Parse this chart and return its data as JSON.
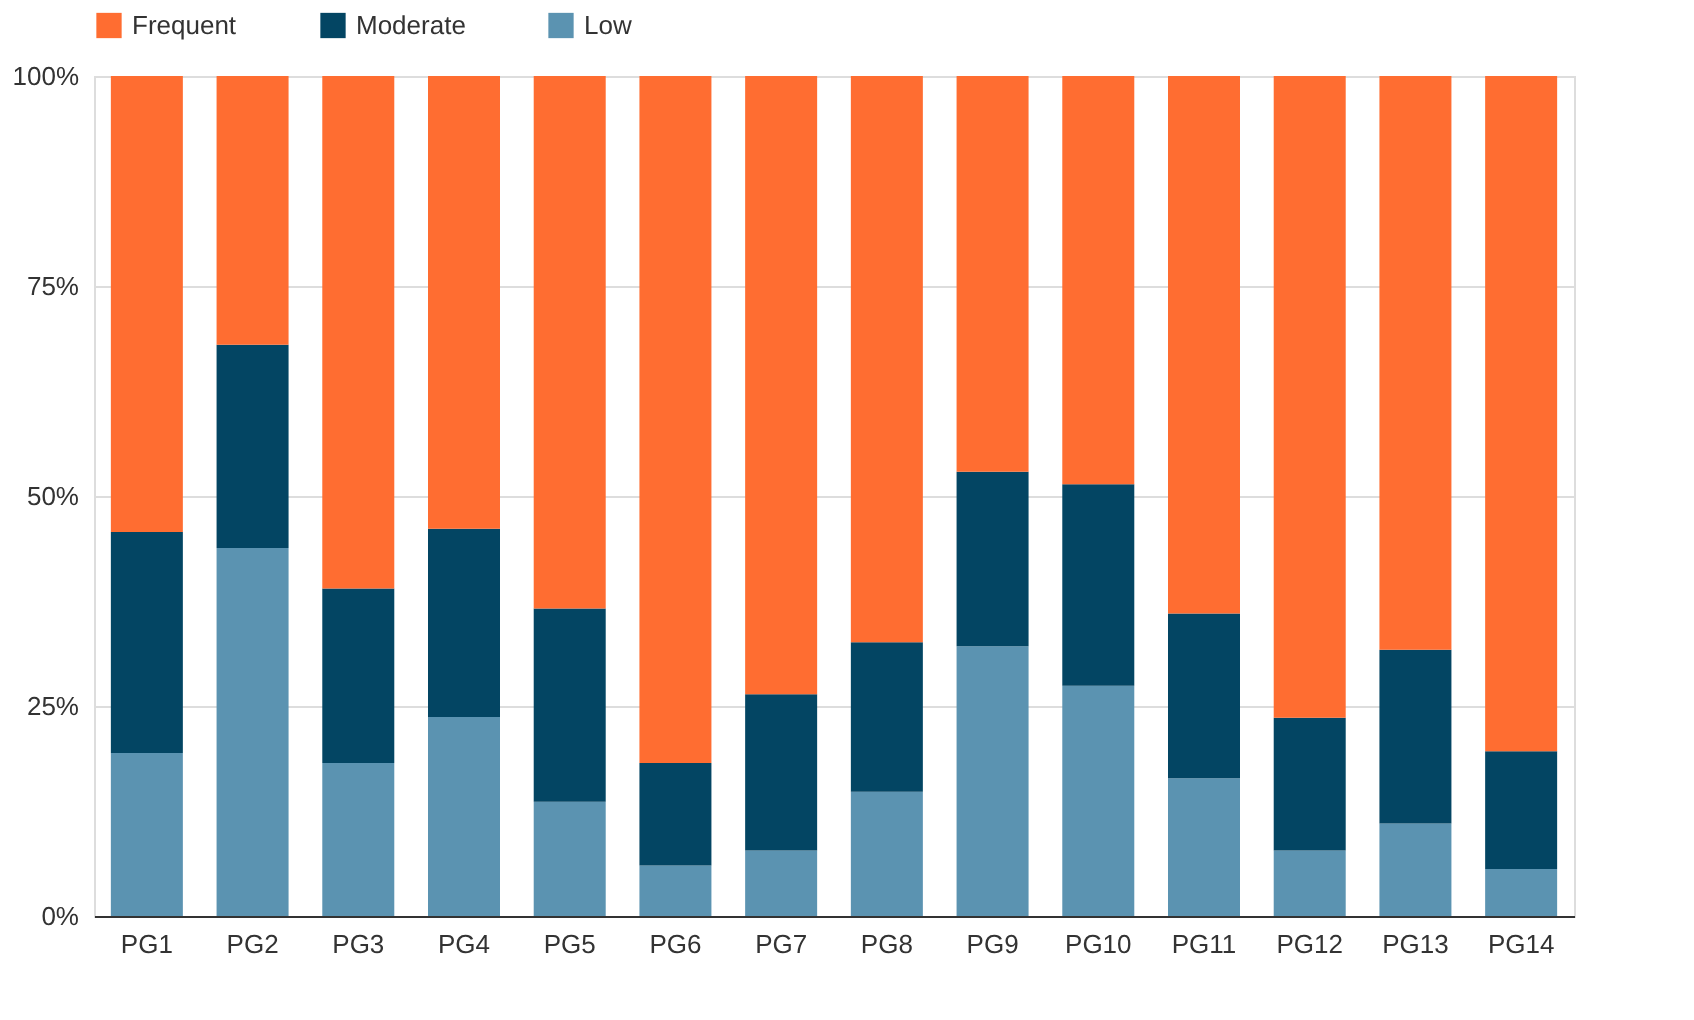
{
  "chart_data": {
    "type": "bar",
    "stacked": true,
    "categories": [
      "PG1",
      "PG2",
      "PG3",
      "PG4",
      "PG5",
      "PG6",
      "PG7",
      "PG8",
      "PG9",
      "PG10",
      "PG11",
      "PG12",
      "PG13",
      "PG14"
    ],
    "series": [
      {
        "name": "Low",
        "color": "#5b93b1",
        "values": [
          19.4,
          43.8,
          18.2,
          23.7,
          13.6,
          6,
          7.8,
          14.8,
          32.1,
          27.4,
          16.4,
          7.8,
          11,
          5.6
        ]
      },
      {
        "name": "Moderate",
        "color": "#034563",
        "values": [
          26.3,
          24.2,
          20.8,
          22.4,
          23,
          12.2,
          18.6,
          17.8,
          20.8,
          24,
          19.6,
          15.8,
          20.7,
          14
        ]
      },
      {
        "name": "Frequent",
        "color": "#ff6d31",
        "values": [
          54.3,
          32,
          61,
          53.9,
          63.4,
          81.8,
          73.6,
          67.4,
          47.1,
          48.6,
          64,
          76.4,
          68.3,
          80.4
        ]
      }
    ],
    "ylim": [
      0,
      100
    ],
    "yticks": [
      {
        "value": 0,
        "label": "0%"
      },
      {
        "value": 25,
        "label": "25%"
      },
      {
        "value": 50,
        "label": "50%"
      },
      {
        "value": 75,
        "label": "75%"
      },
      {
        "value": 100,
        "label": "100%"
      }
    ],
    "grid": "y",
    "legend": "top"
  }
}
